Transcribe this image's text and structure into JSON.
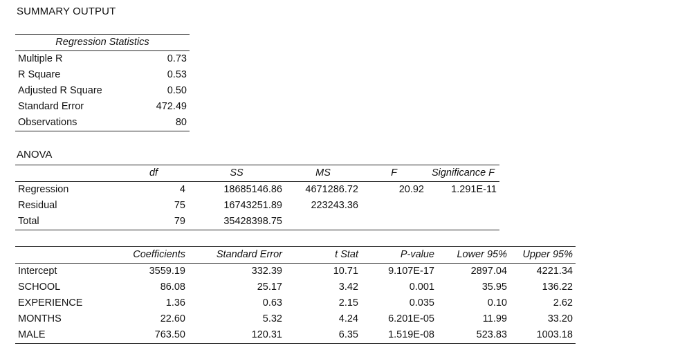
{
  "title": "SUMMARY OUTPUT",
  "regression_statistics": {
    "header": "Regression Statistics",
    "rows": [
      {
        "label": "Multiple R",
        "value": "0.73"
      },
      {
        "label": "R Square",
        "value": "0.53"
      },
      {
        "label": "Adjusted R Square",
        "value": "0.50"
      },
      {
        "label": "Standard Error",
        "value": "472.49"
      },
      {
        "label": "Observations",
        "value": "80"
      }
    ]
  },
  "anova": {
    "label": "ANOVA",
    "headers": [
      "",
      "df",
      "SS",
      "MS",
      "F",
      "Significance F"
    ],
    "rows": [
      {
        "label": "Regression",
        "df": "4",
        "ss": "18685146.86",
        "ms": "4671286.72",
        "f": "20.92",
        "sig_f": "1.291E-11"
      },
      {
        "label": "Residual",
        "df": "75",
        "ss": "16743251.89",
        "ms": "223243.36",
        "f": "",
        "sig_f": ""
      },
      {
        "label": "Total",
        "df": "79",
        "ss": "35428398.75",
        "ms": "",
        "f": "",
        "sig_f": ""
      }
    ]
  },
  "coefficients": {
    "headers": [
      "",
      "Coefficients",
      "Standard Error",
      "t Stat",
      "P-value",
      "Lower 95%",
      "Upper 95%"
    ],
    "rows": [
      {
        "label": "Intercept",
        "coef": "3559.19",
        "se": "332.39",
        "t": "10.71",
        "p": "9.107E-17",
        "lower": "2897.04",
        "upper": "4221.34"
      },
      {
        "label": "SCHOOL",
        "coef": "86.08",
        "se": "25.17",
        "t": "3.42",
        "p": "0.001",
        "lower": "35.95",
        "upper": "136.22"
      },
      {
        "label": "EXPERIENCE",
        "coef": "1.36",
        "se": "0.63",
        "t": "2.15",
        "p": "0.035",
        "lower": "0.10",
        "upper": "2.62"
      },
      {
        "label": "MONTHS",
        "coef": "22.60",
        "se": "5.32",
        "t": "4.24",
        "p": "6.201E-05",
        "lower": "11.99",
        "upper": "33.20"
      },
      {
        "label": "MALE",
        "coef": "763.50",
        "se": "120.31",
        "t": "6.35",
        "p": "1.519E-08",
        "lower": "523.83",
        "upper": "1003.18"
      }
    ]
  }
}
